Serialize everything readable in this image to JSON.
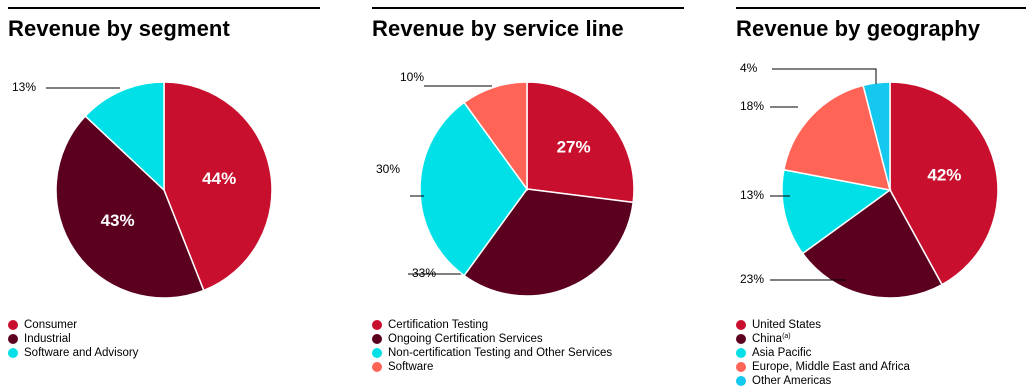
{
  "chart_data": [
    {
      "type": "pie",
      "title": "Revenue by segment",
      "slices": [
        {
          "label": "Consumer",
          "value": 44,
          "display": "44%",
          "color": "#c8102e"
        },
        {
          "label": "Industrial",
          "value": 43,
          "display": "43%",
          "color": "#5c0020"
        },
        {
          "label": "Software and Advisory",
          "value": 13,
          "display": "13%",
          "color": "#00e0e6"
        }
      ],
      "legend": [
        {
          "text": "Consumer",
          "color": "#c8102e"
        },
        {
          "text": "Industrial",
          "color": "#5c0020"
        },
        {
          "text": "Software and Advisory",
          "color": "#00e0e6"
        }
      ]
    },
    {
      "type": "pie",
      "title": "Revenue by service line",
      "slices": [
        {
          "label": "Certification Testing",
          "value": 27,
          "display": "27%",
          "color": "#c8102e"
        },
        {
          "label": "Ongoing Certification Services",
          "value": 33,
          "display": "33%",
          "color": "#5c0020"
        },
        {
          "label": "Non-certification Testing and Other Services",
          "value": 30,
          "display": "30%",
          "color": "#00e0e6"
        },
        {
          "label": "Software",
          "value": 10,
          "display": "10%",
          "color": "#ff6457"
        }
      ],
      "legend": [
        {
          "text": "Certification Testing",
          "color": "#c8102e"
        },
        {
          "text": "Ongoing Certification Services",
          "color": "#5c0020"
        },
        {
          "text": "Non-certification Testing and Other Services",
          "color": "#00e0e6"
        },
        {
          "text": "Software",
          "color": "#ff6457"
        }
      ]
    },
    {
      "type": "pie",
      "title": "Revenue by geography",
      "slices": [
        {
          "label": "United States",
          "value": 42,
          "display": "42%",
          "color": "#c8102e"
        },
        {
          "label": "China",
          "value": 23,
          "display": "23%",
          "color": "#5c0020"
        },
        {
          "label": "Asia Pacific",
          "value": 13,
          "display": "13%",
          "color": "#00e0e6"
        },
        {
          "label": "Europe, Middle East and Africa",
          "value": 18,
          "display": "18%",
          "color": "#ff6457"
        },
        {
          "label": "Other Americas",
          "value": 4,
          "display": "4%",
          "color": "#14c8f0"
        }
      ],
      "legend": [
        {
          "text": "United States",
          "color": "#c8102e"
        },
        {
          "text": "China",
          "sup": "(a)",
          "color": "#5c0020"
        },
        {
          "text": "Asia Pacific",
          "color": "#00e0e6"
        },
        {
          "text": "Europe, Middle East and Africa",
          "color": "#ff6457"
        },
        {
          "text": "Other Americas",
          "color": "#14c8f0"
        }
      ]
    }
  ]
}
